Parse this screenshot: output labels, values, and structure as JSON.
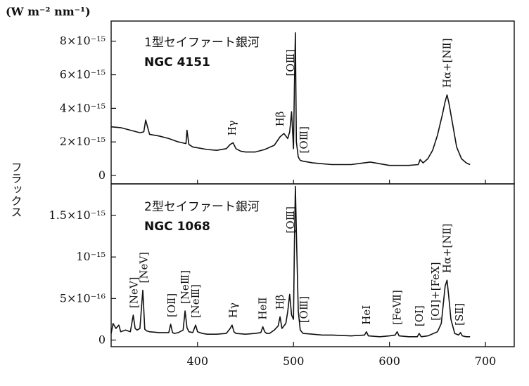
{
  "chart_data": {
    "type": "line",
    "unit_label": "(W m⁻² nm⁻¹)",
    "ylabel": "フラックス",
    "xlim": [
      310,
      730
    ],
    "xticks": [
      "400",
      "500",
      "600",
      "700"
    ],
    "panels": [
      {
        "id": "seyfert1",
        "subtitle_line1": "1型セイファート銀河",
        "subtitle_line2": "NGC 4151",
        "ylim": [
          -5e-16,
          9.2e-15
        ],
        "yticks": [
          {
            "value": 8e-15,
            "label": "8×10⁻¹⁵"
          },
          {
            "value": 6e-15,
            "label": "6×10⁻¹⁵"
          },
          {
            "value": 4e-15,
            "label": "4×10⁻¹⁵"
          },
          {
            "value": 2e-15,
            "label": "2×10⁻¹⁵"
          },
          {
            "value": 0,
            "label": "0"
          }
        ],
        "series": [
          {
            "x": [
              310,
              320,
              330,
              340,
              344,
              346,
              350,
              360,
              370,
              380,
              388,
              389,
              391,
              395,
              400,
              410,
              420,
              430,
              434,
              437,
              440,
              445,
              450,
              460,
              470,
              480,
              486,
              490,
              494,
              496,
              498,
              500,
              501,
              502,
              503,
              505,
              507,
              510,
              520,
              530,
              540,
              560,
              580,
              590,
              600,
              620,
              630,
              632,
              635,
              640,
              645,
              650,
              655,
              658,
              660,
              662,
              666,
              670,
              675,
              680,
              684
            ],
            "y": [
              2.9e-15,
              2.85e-15,
              2.7e-15,
              2.55e-15,
              2.6e-15,
              3.3e-15,
              2.45e-15,
              2.35e-15,
              2.2e-15,
              2e-15,
              1.9e-15,
              2.7e-15,
              1.85e-15,
              1.7e-15,
              1.65e-15,
              1.55e-15,
              1.5e-15,
              1.6e-15,
              1.85e-15,
              1.95e-15,
              1.6e-15,
              1.45e-15,
              1.4e-15,
              1.4e-15,
              1.55e-15,
              1.8e-15,
              2.3e-15,
              2.5e-15,
              2.2e-15,
              2.6e-15,
              3.8e-15,
              1.6e-15,
              5.5e-15,
              8.5e-15,
              2e-15,
              1.1e-15,
              9e-16,
              8.5e-16,
              7.5e-16,
              7e-16,
              6.5e-16,
              6.5e-16,
              8e-16,
              7e-16,
              6e-16,
              6e-16,
              6.5e-16,
              9.5e-16,
              7.5e-16,
              1e-15,
              1.5e-15,
              2.4e-15,
              3.6e-15,
              4.4e-15,
              4.8e-15,
              4.3e-15,
              3e-15,
              1.7e-15,
              1e-15,
              7.5e-16,
              6.5e-16
            ]
          }
        ],
        "annotations": [
          {
            "x": 436,
            "label": "Hγ"
          },
          {
            "x": 486,
            "label": "Hβ"
          },
          {
            "x": 497,
            "label": "[OⅢ]"
          },
          {
            "x": 511,
            "label": "[OⅢ]"
          },
          {
            "x": 660,
            "label": "Hα+[NⅡ]"
          }
        ]
      },
      {
        "id": "seyfert2",
        "subtitle_line1": "2型セイファート銀河",
        "subtitle_line2": "NGC 1068",
        "ylim": [
          -8e-17,
          1.88e-15
        ],
        "yticks": [
          {
            "value": 1.5e-15,
            "label": "1.5×10⁻¹⁵"
          },
          {
            "value": 1e-15,
            "label": "10⁻¹⁵"
          },
          {
            "value": 5e-16,
            "label": "5×10⁻¹⁶"
          },
          {
            "value": 0,
            "label": "0"
          }
        ],
        "series": [
          {
            "x": [
              310,
              312,
              315,
              318,
              320,
              325,
              330,
              333,
              335,
              337,
              340,
              343,
              345,
              347,
              350,
              360,
              370,
              372,
              374,
              376,
              380,
              385,
              387,
              389,
              391,
              395,
              398,
              400,
              405,
              410,
              420,
              430,
              434,
              436,
              438,
              440,
              450,
              460,
              466,
              468,
              470,
              472,
              475,
              480,
              484,
              486,
              488,
              492,
              494,
              496,
              498,
              500,
              501,
              502,
              503,
              505,
              507,
              510,
              520,
              530,
              540,
              560,
              574,
              576,
              578,
              590,
              600,
              606,
              608,
              610,
              620,
              629,
              631,
              633,
              640,
              650,
              654,
              656,
              658,
              660,
              662,
              664,
              668,
              672,
              674,
              676,
              680,
              684
            ],
            "y": [
              8e-17,
              2e-16,
              1.4e-16,
              1.8e-16,
              1e-16,
              1.2e-16,
              1e-16,
              3e-16,
              1.4e-16,
              1.2e-16,
              1.4e-16,
              6e-16,
              1.3e-16,
              1.1e-16,
              1e-16,
              9e-17,
              9e-17,
              1.9e-16,
              9e-17,
              8e-17,
              9e-17,
              1.2e-16,
              3.5e-16,
              1.5e-16,
              1e-16,
              9e-17,
              1.8e-16,
              1e-16,
              8e-17,
              7e-17,
              7e-17,
              8e-17,
              1.4e-16,
              1.8e-16,
              1e-16,
              8e-17,
              7e-17,
              8e-17,
              9e-17,
              1.6e-16,
              1e-16,
              8e-17,
              8e-17,
              1.2e-16,
              1.7e-16,
              2.8e-16,
              1.4e-16,
              2e-16,
              3.4e-16,
              5.5e-16,
              3e-16,
              2.5e-16,
              1.2e-15,
              1.85e-15,
              1.3e-15,
              3.5e-16,
              1.2e-16,
              8e-17,
              7e-17,
              6e-17,
              6e-17,
              5e-17,
              6e-17,
              1e-16,
              5e-17,
              4e-17,
              5e-17,
              6e-17,
              1e-16,
              5e-17,
              4e-17,
              4e-17,
              8e-17,
              4e-17,
              5e-17,
              1e-16,
              2e-16,
              4.2e-16,
              6.5e-16,
              7.2e-16,
              5e-16,
              2.5e-16,
              8e-17,
              6e-17,
              9e-17,
              5e-17,
              4e-17,
              4e-17
            ]
          }
        ],
        "annotations": [
          {
            "x": 334,
            "label": "[NeⅤ]"
          },
          {
            "x": 344,
            "label": "[NeⅤ]"
          },
          {
            "x": 373,
            "label": "[OⅡ]"
          },
          {
            "x": 387,
            "label": "[NeⅢ]"
          },
          {
            "x": 398,
            "label": "[NeⅢ]"
          },
          {
            "x": 437,
            "label": "Hγ"
          },
          {
            "x": 468,
            "label": "HeⅡ"
          },
          {
            "x": 486,
            "label": "Hβ"
          },
          {
            "x": 497,
            "label": "[OⅢ]"
          },
          {
            "x": 511,
            "label": "[OⅢ]"
          },
          {
            "x": 576,
            "label": "HeⅠ"
          },
          {
            "x": 608,
            "label": "[FeⅦ]"
          },
          {
            "x": 631,
            "label": "[OⅠ]"
          },
          {
            "x": 648,
            "label": "[OⅠ]+[FeⅩ]"
          },
          {
            "x": 660,
            "label": "Hα+[NⅡ]"
          },
          {
            "x": 673,
            "label": "[SⅡ]"
          }
        ]
      }
    ]
  }
}
